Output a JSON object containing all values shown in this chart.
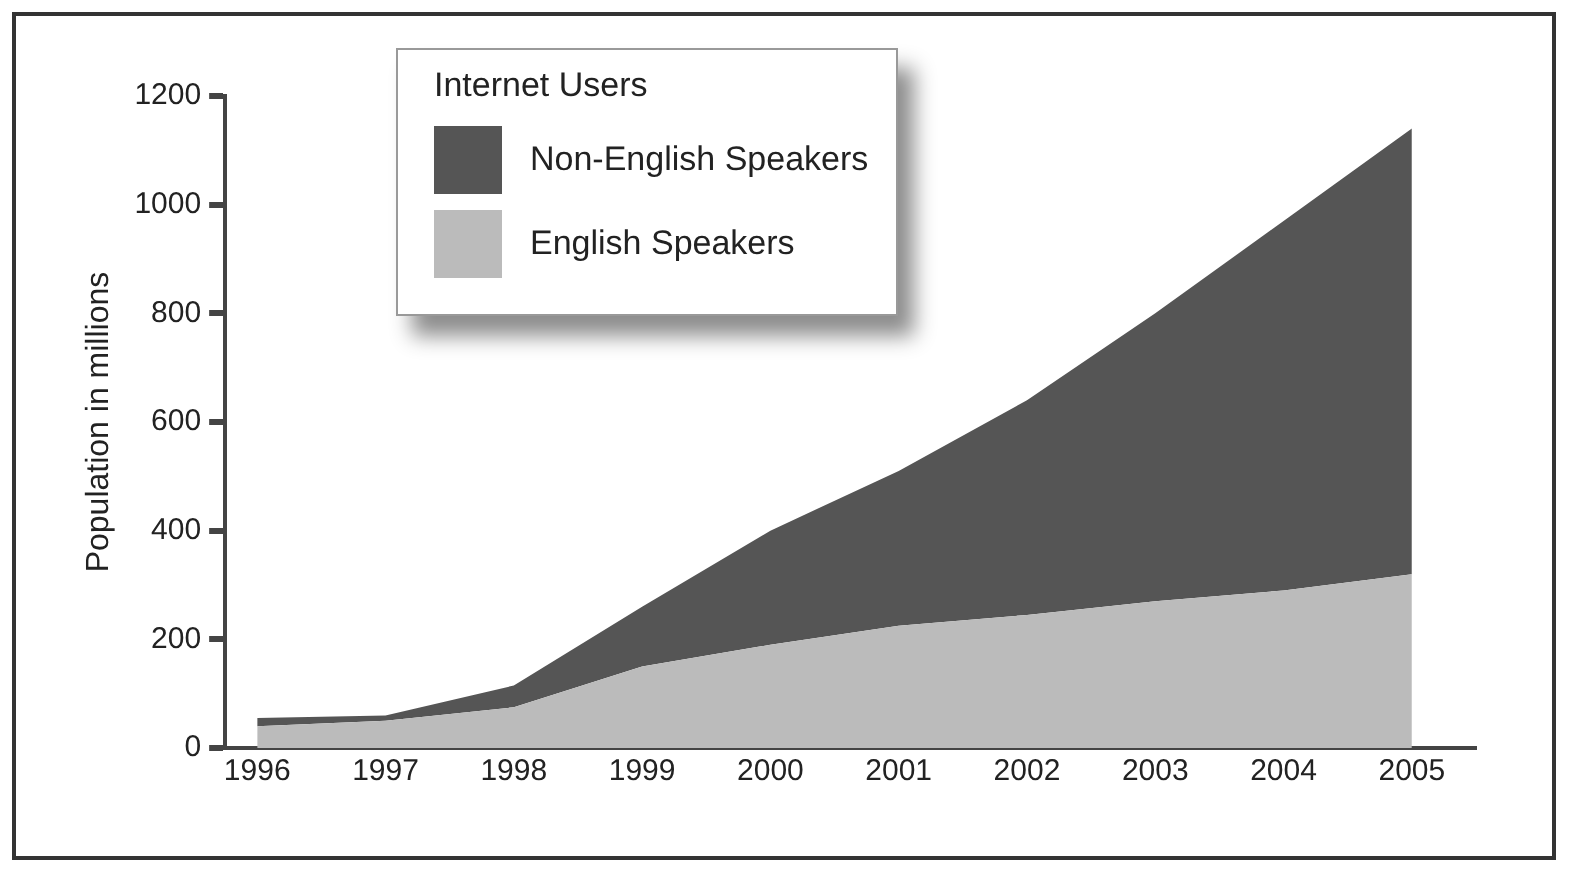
{
  "chart_data": {
    "type": "area",
    "stacked": true,
    "legend_title": "Internet Users",
    "ylabel": "Population in millions",
    "x": [
      1996,
      1997,
      1998,
      1999,
      2000,
      2001,
      2002,
      2003,
      2004,
      2005
    ],
    "series": [
      {
        "name": "English Speakers",
        "color": "#bbbbbb",
        "values": [
          40,
          50,
          75,
          150,
          190,
          225,
          245,
          270,
          290,
          320
        ]
      },
      {
        "name": "Non-English Speakers",
        "color": "#555555",
        "values": [
          15,
          10,
          40,
          110,
          210,
          285,
          395,
          530,
          680,
          820
        ]
      }
    ],
    "xlim": [
      1995.75,
      2005.5
    ],
    "xticks": [
      1996,
      1997,
      1998,
      1999,
      2000,
      2001,
      2002,
      2003,
      2004,
      2005
    ],
    "ylim": [
      0,
      1200
    ],
    "yticks": [
      0,
      200,
      400,
      600,
      800,
      1000,
      1200
    ],
    "grid": false,
    "legend": "top left"
  }
}
